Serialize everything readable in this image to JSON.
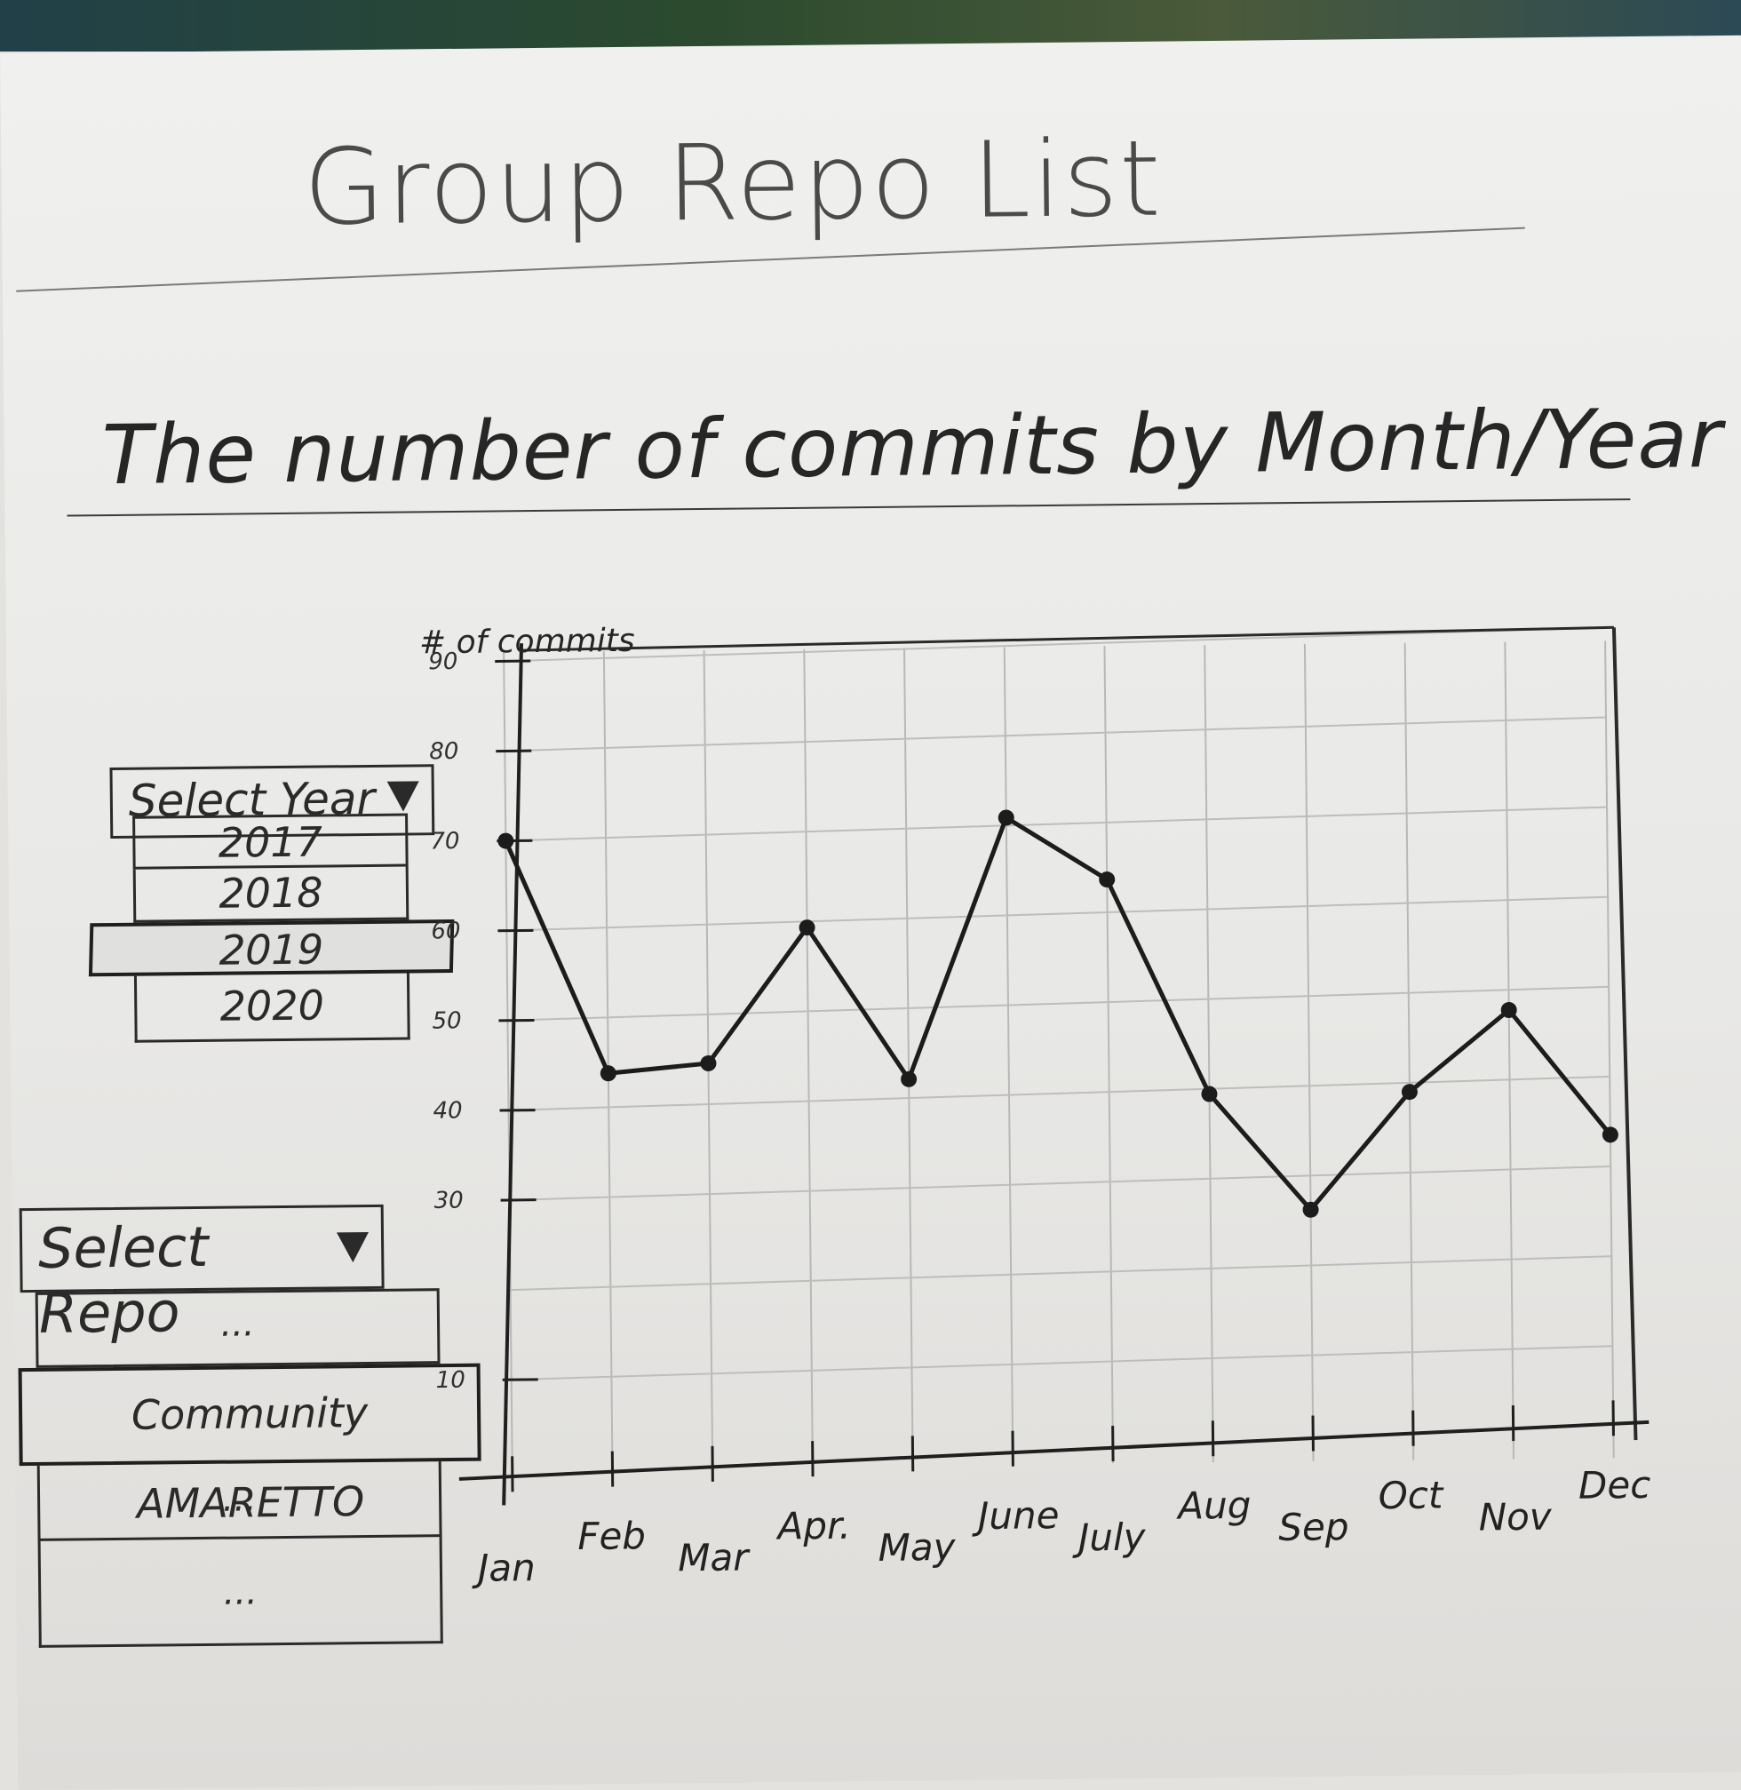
{
  "header": {
    "title": "Group Repo List"
  },
  "chart_section": {
    "title": "The number of commits by Month/Year"
  },
  "year_select": {
    "label": "Select Year",
    "options": [
      "2017",
      "2018",
      "2019",
      "2020"
    ],
    "selected": "2019"
  },
  "repo_select": {
    "label": "Select Repo",
    "options": [
      "...",
      "Community AMARETTO",
      "...",
      "..."
    ],
    "selected": "Community AMARETTO"
  },
  "chart_data": {
    "type": "line",
    "ylabel": "# of commits",
    "xlabel": "",
    "categories": [
      "Jan",
      "Feb",
      "Mar",
      "Apr.",
      "May",
      "June",
      "July",
      "Aug",
      "Sep",
      "Oct",
      "Nov",
      "Dec"
    ],
    "y_ticks": [
      "90",
      "80",
      "70",
      "60",
      "50",
      "40",
      "30",
      "10"
    ],
    "series": [
      {
        "values": [
          70,
          44,
          45,
          60,
          43,
          72,
          65,
          41,
          28,
          41,
          50,
          36
        ]
      }
    ],
    "ylim": [
      0,
      90
    ],
    "grid": true
  }
}
